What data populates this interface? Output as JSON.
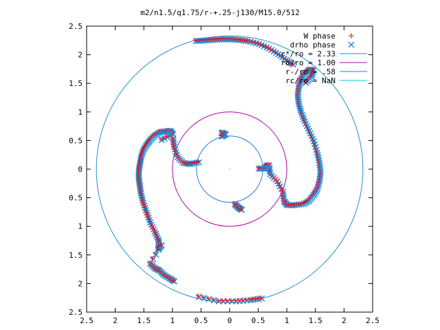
{
  "chart_data": {
    "type": "scatter",
    "title": "m2/n1.5/q1.75/r-+.25-j130/M15.0/512",
    "xlabel": "",
    "ylabel": "",
    "xlim": [
      -2.5,
      2.5
    ],
    "ylim": [
      -2.5,
      2.5
    ],
    "x_tick_labels": [
      "2.5",
      "2",
      "1.5",
      "1",
      "0.5",
      "0",
      "0.5",
      "1",
      "1.5",
      "2",
      "2.5"
    ],
    "y_tick_labels": [
      "2.5",
      "2",
      "1.5",
      "1",
      "0.5",
      "0",
      "0.5",
      "1",
      "1.5",
      "2",
      "2.5"
    ],
    "grid": false,
    "legend_position": "top-right",
    "series": [
      {
        "name": "W phase",
        "marker": "plus",
        "color": "#ff0000"
      },
      {
        "name": "drho phase",
        "marker": "cross",
        "color": "#0066cc"
      }
    ],
    "circles": [
      {
        "name": "r*/ro = 2.33",
        "radius": 2.33,
        "color": "#1e90d0"
      },
      {
        "name": "ro/ro = 1.00",
        "radius": 1.0,
        "color": "#aa00aa"
      },
      {
        "name": "r-/ro = .58",
        "radius": 0.58,
        "color": "#1e7fd8"
      },
      {
        "name": "rc/ro = NaN",
        "radius": null,
        "color": "#00c8d8"
      }
    ],
    "arms": [
      {
        "points": [
          [
            -1.2,
            0.52
          ],
          [
            -1.0,
            0.62
          ],
          [
            -1.05,
            0.68
          ],
          [
            -1.12,
            0.67
          ],
          [
            -1.22,
            0.66
          ],
          [
            -1.32,
            0.6
          ],
          [
            -1.4,
            0.52
          ],
          [
            -1.46,
            0.44
          ],
          [
            -1.52,
            0.34
          ],
          [
            -1.56,
            0.22
          ],
          [
            -1.58,
            0.1
          ],
          [
            -1.6,
            -0.02
          ],
          [
            -1.6,
            -0.15
          ],
          [
            -1.58,
            -0.28
          ],
          [
            -1.56,
            -0.42
          ],
          [
            -1.52,
            -0.58
          ],
          [
            -1.46,
            -0.75
          ],
          [
            -1.4,
            -0.92
          ],
          [
            -1.32,
            -1.08
          ],
          [
            -1.26,
            -1.22
          ],
          [
            -1.24,
            -1.32
          ],
          [
            -1.26,
            -1.38
          ],
          [
            -1.2,
            -1.32
          ],
          [
            -1.4,
            -1.64
          ],
          [
            -1.32,
            -1.72
          ],
          [
            -1.24,
            -1.76
          ],
          [
            -1.16,
            -1.84
          ],
          [
            -1.06,
            -1.9
          ],
          [
            -0.98,
            -1.95
          ]
        ]
      },
      {
        "points": [
          [
            -1.0,
            0.55
          ],
          [
            -0.98,
            0.4
          ],
          [
            -0.92,
            0.22
          ],
          [
            -0.82,
            0.12
          ],
          [
            -0.7,
            0.1
          ],
          [
            -0.55,
            0.13
          ]
        ]
      },
      {
        "points": [
          [
            -0.15,
            0.65
          ],
          [
            -0.08,
            0.62
          ],
          [
            -0.15,
            0.58
          ]
        ]
      },
      {
        "points": [
          [
            0.68,
            0.08
          ],
          [
            0.7,
            -0.08
          ],
          [
            0.82,
            -0.2
          ],
          [
            0.92,
            -0.38
          ],
          [
            0.94,
            -0.55
          ],
          [
            1.0,
            -0.62
          ],
          [
            1.12,
            -0.62
          ],
          [
            1.28,
            -0.6
          ],
          [
            1.38,
            -0.54
          ],
          [
            1.46,
            -0.44
          ],
          [
            1.52,
            -0.34
          ],
          [
            1.56,
            -0.2
          ],
          [
            1.58,
            -0.05
          ],
          [
            1.56,
            0.12
          ],
          [
            1.52,
            0.3
          ],
          [
            1.46,
            0.5
          ],
          [
            1.38,
            0.68
          ],
          [
            1.3,
            0.85
          ],
          [
            1.24,
            1.0
          ],
          [
            1.2,
            1.15
          ],
          [
            1.18,
            1.3
          ],
          [
            1.2,
            1.45
          ],
          [
            1.24,
            1.58
          ],
          [
            1.3,
            1.68
          ],
          [
            1.38,
            1.75
          ],
          [
            1.45,
            1.74
          ],
          [
            1.42,
            1.62
          ],
          [
            1.32,
            1.52
          ]
        ]
      },
      {
        "points": [
          [
            0.65,
            0.08
          ],
          [
            0.6,
            0.02
          ],
          [
            0.5,
            0.02
          ]
        ]
      },
      {
        "points": [
          [
            0.08,
            -0.6
          ],
          [
            0.14,
            -0.66
          ],
          [
            0.2,
            -0.7
          ]
        ]
      },
      {
        "points": [
          [
            -0.6,
            2.25
          ],
          [
            -0.45,
            2.26
          ],
          [
            -0.3,
            2.27
          ],
          [
            -0.15,
            2.28
          ],
          [
            0.0,
            2.28
          ],
          [
            0.15,
            2.27
          ],
          [
            0.3,
            2.25
          ],
          [
            0.5,
            2.2
          ],
          [
            0.68,
            2.12
          ],
          [
            0.84,
            2.02
          ],
          [
            0.98,
            1.92
          ],
          [
            1.1,
            1.84
          ]
        ]
      },
      {
        "points": [
          [
            -0.55,
            -2.22
          ],
          [
            -0.2,
            -2.3
          ],
          [
            0.1,
            -2.3
          ],
          [
            0.35,
            -2.28
          ],
          [
            0.55,
            -2.25
          ]
        ]
      }
    ]
  }
}
